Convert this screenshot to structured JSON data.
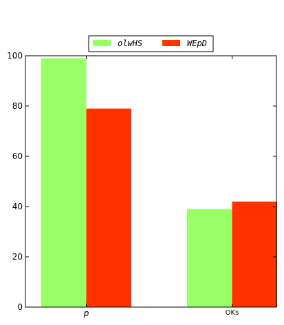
{
  "chart_data": {
    "type": "bar",
    "title": "",
    "xlabel": "",
    "ylabel": "",
    "categories": [
      "p",
      "OKs"
    ],
    "series": [
      {
        "name": "olwHS",
        "values": [
          99,
          39
        ],
        "color": "#99ff66"
      },
      {
        "name": "WEpD",
        "values": [
          79,
          42
        ],
        "color": "#ff3300"
      }
    ],
    "ylim": [
      0,
      100
    ],
    "yticks": [
      0,
      20,
      40,
      60,
      80,
      100
    ],
    "legend": {
      "placement": "top-center",
      "columns": 2
    },
    "grid": false
  }
}
